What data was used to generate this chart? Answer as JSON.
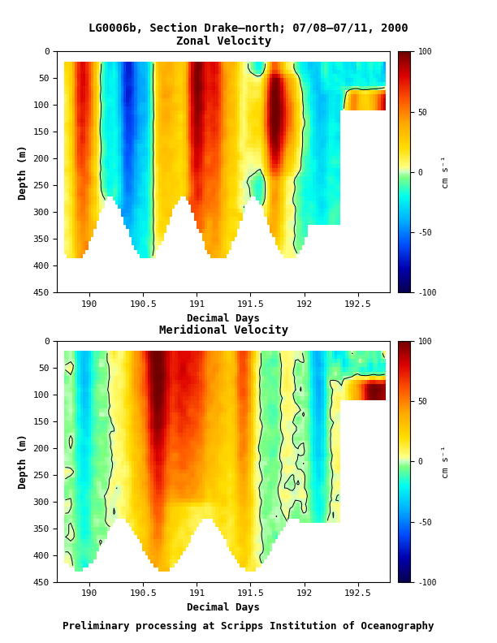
{
  "title": "LG0006b, Section Drake–north; 07/08–07/11, 2000",
  "subtitle_bottom": "Preliminary processing at Scripps Institution of Oceanography",
  "panel1_title": "Zonal Velocity",
  "panel2_title": "Meridional Velocity",
  "xlabel": "Decimal Days",
  "ylabel": "Depth (m)",
  "colorbar_label": "cm s⁻¹",
  "colorbar_ticks": [
    100,
    50,
    0,
    -50,
    -100
  ],
  "vmin": -100,
  "vmax": 100,
  "xlim": [
    189.7,
    192.8
  ],
  "ylim": [
    450,
    0
  ],
  "xticks": [
    190,
    190.5,
    191,
    191.5,
    192,
    192.5
  ],
  "yticks": [
    0,
    50,
    100,
    150,
    200,
    250,
    300,
    350,
    400,
    450
  ],
  "figsize": [
    6.12,
    7.92
  ],
  "dpi": 100,
  "colorbar_colors": [
    [
      0.0,
      "#080050"
    ],
    [
      0.1,
      "#0000b0"
    ],
    [
      0.2,
      "#0050ff"
    ],
    [
      0.3,
      "#00b0ff"
    ],
    [
      0.4,
      "#00ffee"
    ],
    [
      0.48,
      "#80ff80"
    ],
    [
      0.5,
      "#c8ffc8"
    ],
    [
      0.52,
      "#ffff80"
    ],
    [
      0.6,
      "#ffdd00"
    ],
    [
      0.7,
      "#ffaa00"
    ],
    [
      0.8,
      "#ff5500"
    ],
    [
      0.9,
      "#dd0000"
    ],
    [
      1.0,
      "#700000"
    ]
  ]
}
